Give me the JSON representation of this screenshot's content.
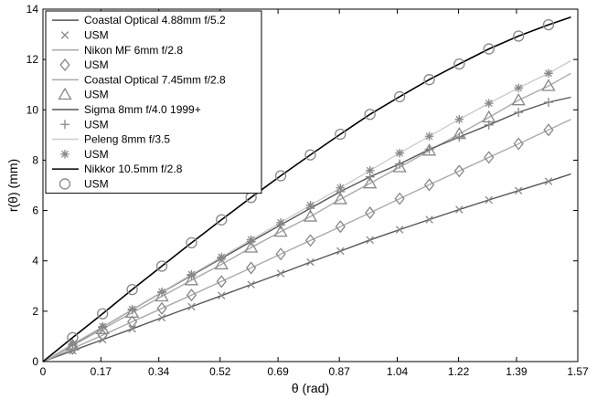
{
  "chart_data": {
    "type": "line",
    "title": "",
    "xlabel": "θ (rad)",
    "ylabel": "r(θ) (mm)",
    "xlim": [
      0,
      1.57
    ],
    "ylim": [
      0,
      14
    ],
    "x_ticks": [
      "0",
      "0.17",
      "0.34",
      "0.52",
      "0.69",
      "0.87",
      "1.04",
      "1.22",
      "1.39",
      "1.57"
    ],
    "y_ticks": [
      "0",
      "2",
      "4",
      "6",
      "8",
      "10",
      "12",
      "14"
    ],
    "grid": false,
    "legend_position": "top-left",
    "lenses": [
      {
        "name": "Coastal Optical 4.88mm f/5.2",
        "marker_label": "USM",
        "marker": "x",
        "color": "#555555",
        "x": [
          0,
          0.087,
          0.175,
          0.262,
          0.349,
          0.436,
          0.524,
          0.611,
          0.698,
          0.785,
          0.873,
          0.96,
          1.047,
          1.134,
          1.222,
          1.309,
          1.396,
          1.484,
          1.55
        ],
        "y": [
          0,
          0.43,
          0.87,
          1.3,
          1.74,
          2.18,
          2.62,
          3.06,
          3.5,
          3.95,
          4.39,
          4.83,
          5.24,
          5.64,
          6.04,
          6.42,
          6.79,
          7.16,
          7.45
        ]
      },
      {
        "name": "Nikon MF 6mm f/2.8",
        "marker_label": "USM",
        "marker": "diamond",
        "color": "#aaaaaa",
        "x": [
          0,
          0.087,
          0.175,
          0.262,
          0.349,
          0.436,
          0.524,
          0.611,
          0.698,
          0.785,
          0.873,
          0.96,
          1.047,
          1.134,
          1.222,
          1.309,
          1.396,
          1.484,
          1.55
        ],
        "y": [
          0,
          0.52,
          1.05,
          1.58,
          2.11,
          2.64,
          3.18,
          3.72,
          4.27,
          4.81,
          5.36,
          5.91,
          6.47,
          7.02,
          7.57,
          8.11,
          8.65,
          9.2,
          9.62
        ]
      },
      {
        "name": "Coastal Optical 7.45mm f/2.8",
        "marker_label": "USM",
        "marker": "triangle",
        "color": "#aaaaaa",
        "x": [
          0,
          0.087,
          0.175,
          0.262,
          0.349,
          0.436,
          0.524,
          0.611,
          0.698,
          0.785,
          0.873,
          0.96,
          1.047,
          1.134,
          1.222,
          1.309,
          1.396,
          1.484,
          1.55
        ],
        "y": [
          0,
          0.64,
          1.29,
          1.94,
          2.59,
          3.23,
          3.86,
          4.53,
          5.16,
          5.76,
          6.45,
          7.08,
          7.72,
          8.38,
          9.04,
          9.7,
          10.38,
          10.95,
          11.45
        ]
      },
      {
        "name": "Sigma 8mm f/4.0 1999+",
        "marker_label": "USM",
        "marker": "plus",
        "color": "#555555",
        "x": [
          0,
          0.087,
          0.175,
          0.262,
          0.349,
          0.436,
          0.524,
          0.611,
          0.698,
          0.785,
          0.873,
          0.96,
          1.047,
          1.134,
          1.222,
          1.309,
          1.396,
          1.484,
          1.55
        ],
        "y": [
          0,
          0.68,
          1.37,
          2.06,
          2.75,
          3.42,
          4.1,
          4.77,
          5.43,
          6.09,
          6.75,
          7.34,
          7.85,
          8.43,
          8.92,
          9.4,
          9.9,
          10.3,
          10.5
        ]
      },
      {
        "name": "Peleng 8mm f/3.5",
        "marker_label": "USM",
        "marker": "asterisk",
        "color": "#cccccc",
        "x": [
          0,
          0.087,
          0.175,
          0.262,
          0.349,
          0.436,
          0.524,
          0.611,
          0.698,
          0.785,
          0.873,
          0.96,
          1.047,
          1.134,
          1.222,
          1.309,
          1.396,
          1.484,
          1.55
        ],
        "y": [
          0,
          0.7,
          1.39,
          2.08,
          2.77,
          3.46,
          4.15,
          4.84,
          5.52,
          6.21,
          6.9,
          7.59,
          8.28,
          8.95,
          9.62,
          10.26,
          10.87,
          11.45,
          11.95
        ]
      },
      {
        "name": "Nikkor 10.5mm f/2.8",
        "marker_label": "USM",
        "marker": "circle",
        "color": "#000000",
        "x": [
          0,
          0.087,
          0.175,
          0.262,
          0.349,
          0.436,
          0.524,
          0.611,
          0.698,
          0.785,
          0.873,
          0.96,
          1.047,
          1.134,
          1.222,
          1.309,
          1.396,
          1.484,
          1.55
        ],
        "y": [
          0,
          0.95,
          1.9,
          2.86,
          3.79,
          4.72,
          5.63,
          6.52,
          7.38,
          8.21,
          9.03,
          9.82,
          10.52,
          11.2,
          11.82,
          12.42,
          12.93,
          13.38,
          13.68
        ]
      }
    ]
  }
}
